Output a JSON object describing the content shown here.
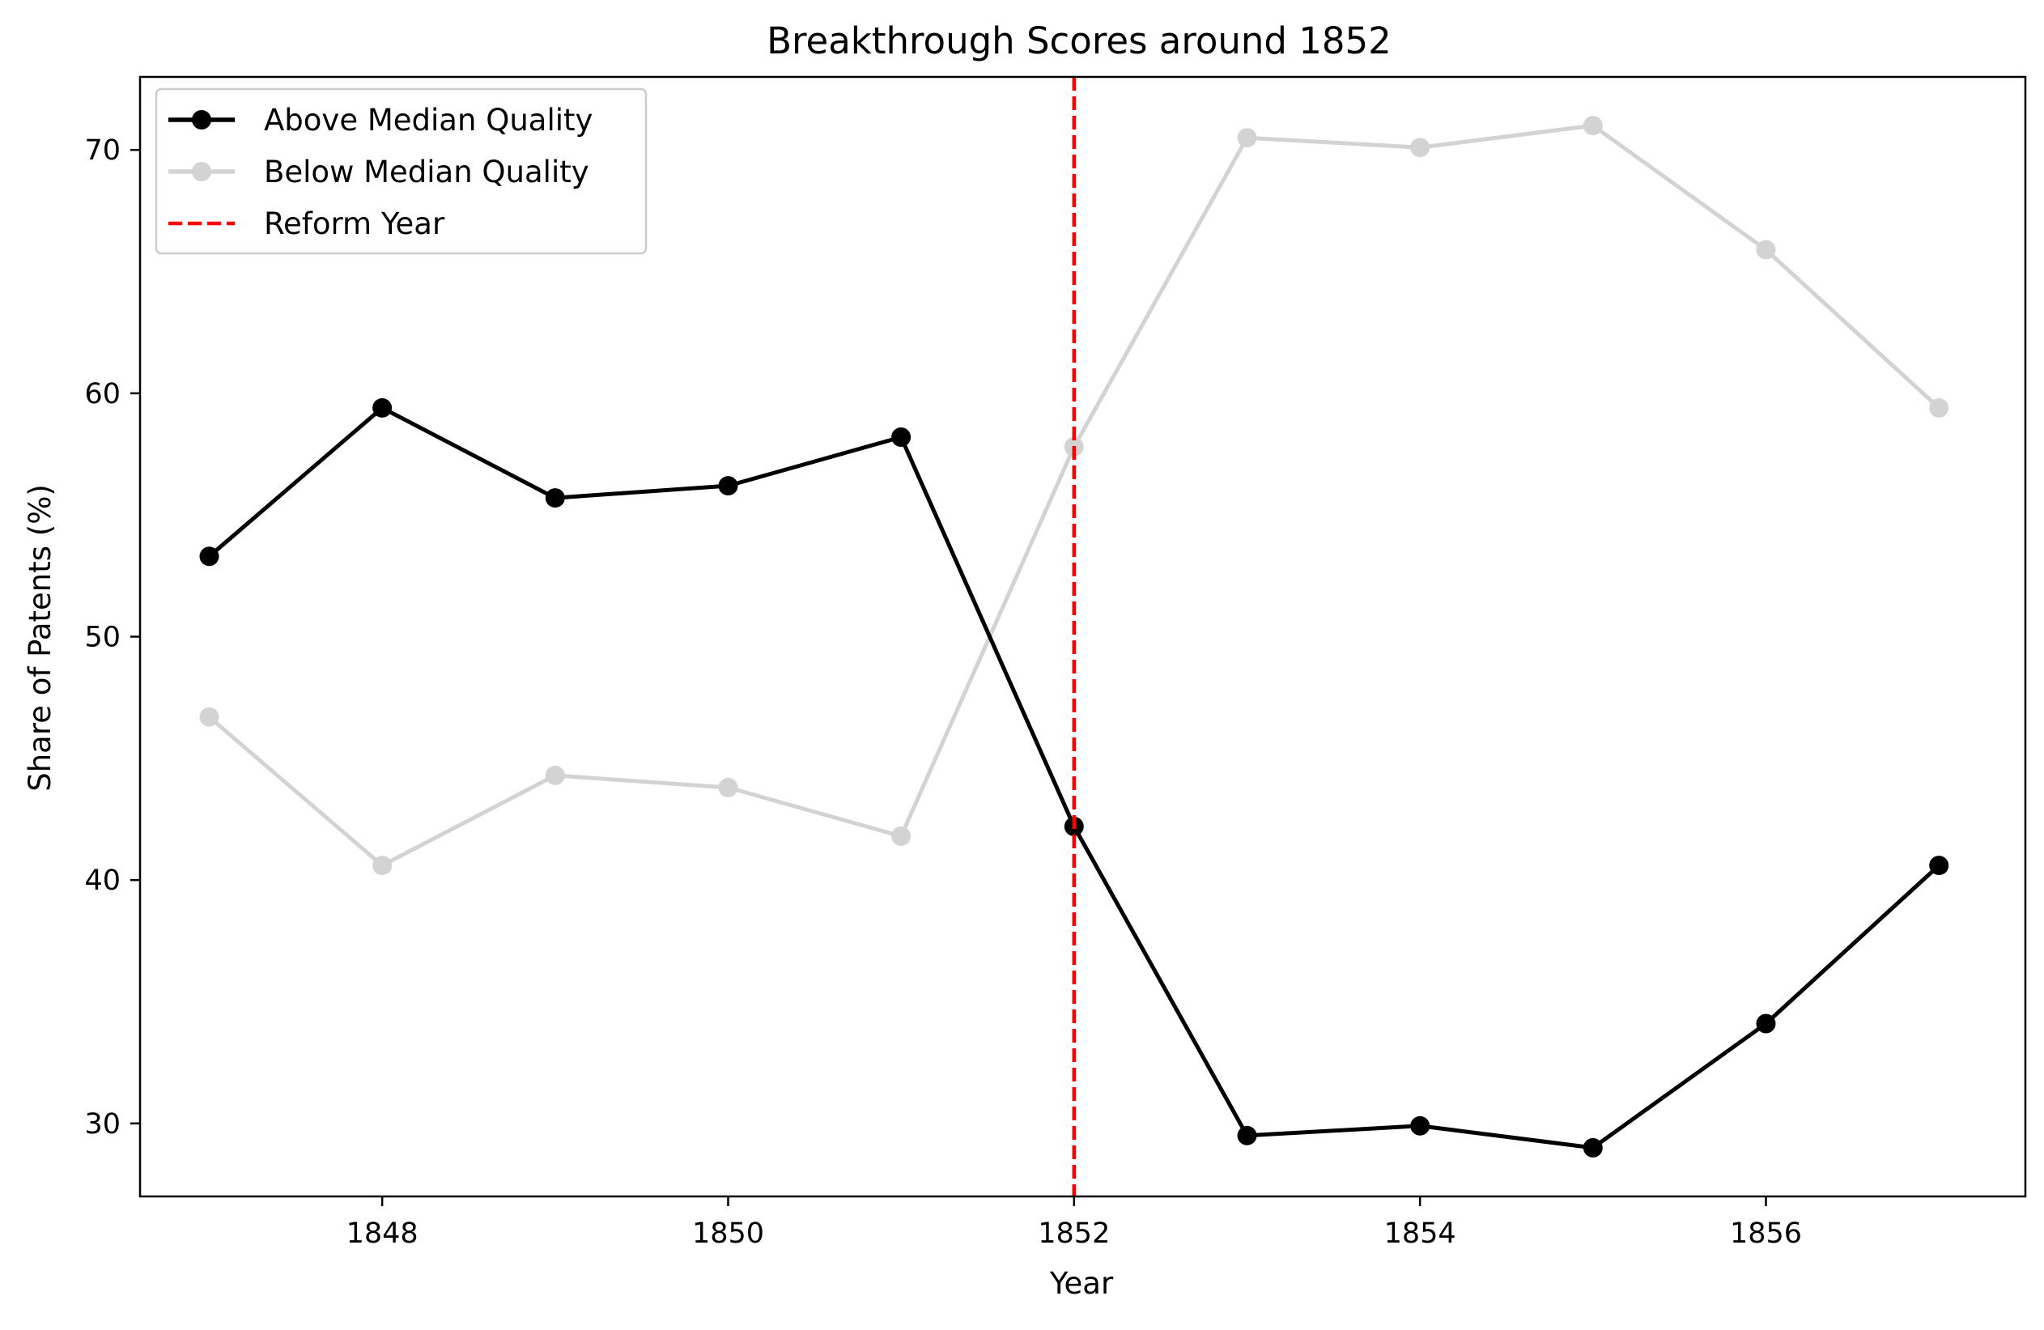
{
  "chart_data": {
    "type": "line",
    "title": "Breakthrough Scores around 1852",
    "xlabel": "Year",
    "ylabel": "Share of Patents (%)",
    "x": [
      1847,
      1848,
      1849,
      1850,
      1851,
      1852,
      1853,
      1854,
      1855,
      1856,
      1857
    ],
    "xlim": [
      1846.6,
      1857.5
    ],
    "ylim": [
      27.0,
      73.0
    ],
    "xticks": [
      1848,
      1850,
      1852,
      1854,
      1856
    ],
    "yticks": [
      30,
      40,
      50,
      60,
      70
    ],
    "grid": false,
    "legend_position": "top-left",
    "series": [
      {
        "name": "Above Median Quality",
        "color": "#000000",
        "marker": "circle",
        "values": [
          53.3,
          59.4,
          55.7,
          56.2,
          58.2,
          42.2,
          29.5,
          29.9,
          29.0,
          34.1,
          40.6
        ]
      },
      {
        "name": "Below Median Quality",
        "color": "#d3d3d3",
        "marker": "circle",
        "values": [
          46.7,
          40.6,
          44.3,
          43.8,
          41.8,
          57.8,
          70.5,
          70.1,
          71.0,
          65.9,
          59.4
        ]
      }
    ],
    "reference_lines": [
      {
        "name": "Reform Year",
        "axis": "x",
        "value": 1852,
        "color": "#ff0000",
        "style": "dashed"
      }
    ]
  }
}
